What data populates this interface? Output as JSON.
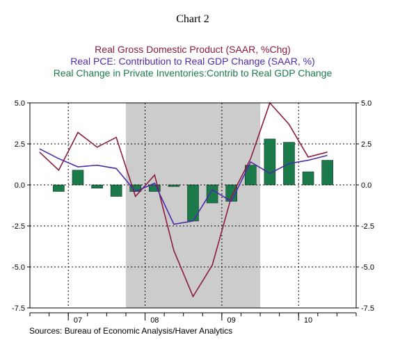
{
  "header": {
    "chart_number": "Chart 2",
    "legend_line1": "Real Gross Domestic Product (SAAR, %Chg)",
    "legend_line2": "Real PCE: Contribution to Real GDP Change (SAAR, %)",
    "legend_line3": "Real Change in Private Inventories:Contrib to Real GDP Change"
  },
  "footer": {
    "source": "Sources:  Bureau of Economic Analysis/Haver Analytics"
  },
  "colors": {
    "gdp": "#8b1a3c",
    "pce": "#4b2ca8",
    "inventories": "#1b7a4a",
    "recession": "#cccccc"
  },
  "chart_data": {
    "type": "line",
    "title": "Chart 2",
    "quarters": [
      "2006Q4",
      "2007Q1",
      "2007Q2",
      "2007Q3",
      "2007Q4",
      "2008Q1",
      "2008Q2",
      "2008Q3",
      "2008Q4",
      "2009Q1",
      "2009Q2",
      "2009Q3",
      "2009Q4",
      "2010Q1",
      "2010Q2",
      "2010Q3"
    ],
    "year_labels": [
      {
        "label": "07",
        "quarter_index": 2
      },
      {
        "label": "08",
        "quarter_index": 6
      },
      {
        "label": "09",
        "quarter_index": 10
      },
      {
        "label": "10",
        "quarter_index": 14
      }
    ],
    "recession_shading": {
      "from": "2007Q4",
      "to": "2009Q2"
    },
    "y_ticks": [
      "5.0",
      "2.5",
      "0.0",
      "-2.5",
      "-5.0",
      "-7.5"
    ],
    "y_tick_values": [
      5.0,
      2.5,
      0.0,
      -2.5,
      -5.0,
      -7.5
    ],
    "ylim": [
      -7.5,
      5.0
    ],
    "grid": "dotted",
    "legend_position": "top",
    "series": [
      {
        "name": "Real Gross Domestic Product (SAAR, %Chg)",
        "kind": "line",
        "color": "#8b1a3c",
        "x": [
          "2006Q3",
          "2006Q4",
          "2007Q1",
          "2007Q2",
          "2007Q3",
          "2007Q4",
          "2008Q1",
          "2008Q2",
          "2008Q3",
          "2008Q4",
          "2009Q1",
          "2009Q2",
          "2009Q3",
          "2009Q4",
          "2010Q1",
          "2010Q2"
        ],
        "values": [
          2.0,
          0.9,
          3.2,
          2.3,
          2.9,
          -0.7,
          0.6,
          -4.0,
          -6.8,
          -4.9,
          -0.7,
          1.6,
          5.0,
          3.7,
          1.7,
          2.0
        ]
      },
      {
        "name": "Real PCE: Contribution to Real GDP Change (SAAR, %)",
        "kind": "line",
        "color": "#4b2ca8",
        "x": [
          "2006Q3",
          "2006Q4",
          "2007Q1",
          "2007Q2",
          "2007Q3",
          "2007Q4",
          "2008Q1",
          "2008Q2",
          "2008Q3",
          "2008Q4",
          "2009Q1",
          "2009Q2",
          "2009Q3",
          "2009Q4",
          "2010Q1",
          "2010Q2"
        ],
        "values": [
          2.2,
          1.6,
          1.1,
          1.2,
          1.0,
          -0.4,
          0.1,
          -2.4,
          -2.2,
          -0.3,
          -1.0,
          1.4,
          0.7,
          1.3,
          1.5,
          1.8
        ]
      },
      {
        "name": "Real Change in Private Inventories:Contrib to Real GDP Change",
        "kind": "bar",
        "color": "#1b7a4a",
        "x": [
          "2006Q4",
          "2007Q1",
          "2007Q2",
          "2007Q3",
          "2007Q4",
          "2008Q1",
          "2008Q2",
          "2008Q3",
          "2008Q4",
          "2009Q1",
          "2009Q2",
          "2009Q3",
          "2009Q4",
          "2010Q1",
          "2010Q2"
        ],
        "values": [
          -0.4,
          0.9,
          -0.2,
          -0.7,
          -0.4,
          -0.4,
          -0.1,
          -2.2,
          -1.1,
          -1.0,
          1.2,
          2.8,
          2.6,
          0.8,
          1.5
        ]
      }
    ]
  }
}
